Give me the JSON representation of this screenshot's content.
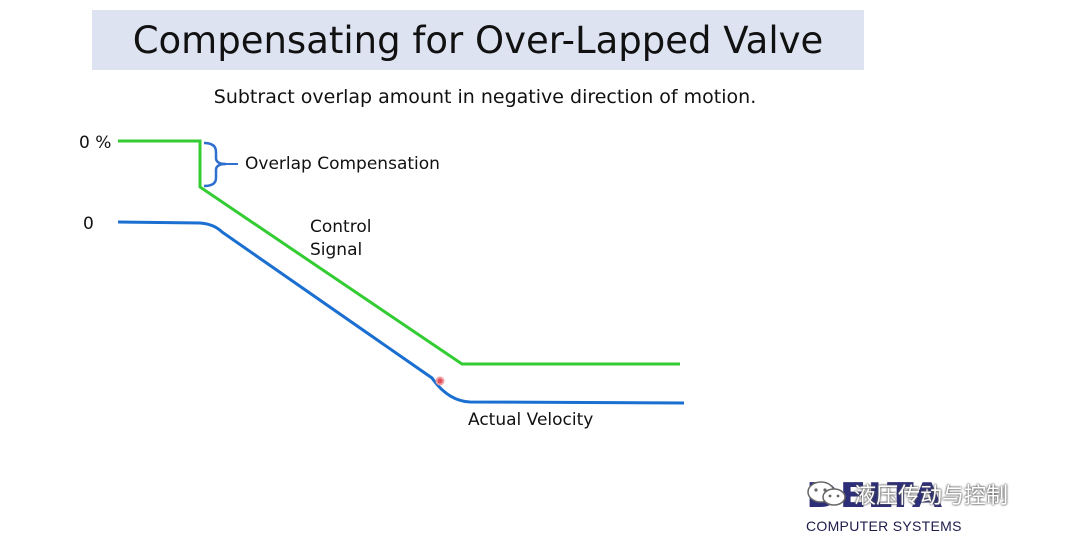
{
  "title": "Compensating for Over-Lapped Valve",
  "subtitle": "Subtract overlap amount in negative direction of motion.",
  "labels": {
    "zero_percent": "0 %",
    "zero": "0",
    "overlap": "Overlap Compensation",
    "control_signal_line1": "Control",
    "control_signal_line2": "Signal",
    "actual_velocity": "Actual Velocity"
  },
  "colors": {
    "control_signal": "#33cc33",
    "actual_velocity": "#1a6fd0",
    "bracket": "#2f6fcf",
    "title_bg": "#dde3f1"
  },
  "logo": {
    "word": "DELTA",
    "sub": "COMPUTER SYSTEMS"
  },
  "watermark": {
    "text": "液压传动与控制",
    "icon": "wechat-icon"
  }
}
